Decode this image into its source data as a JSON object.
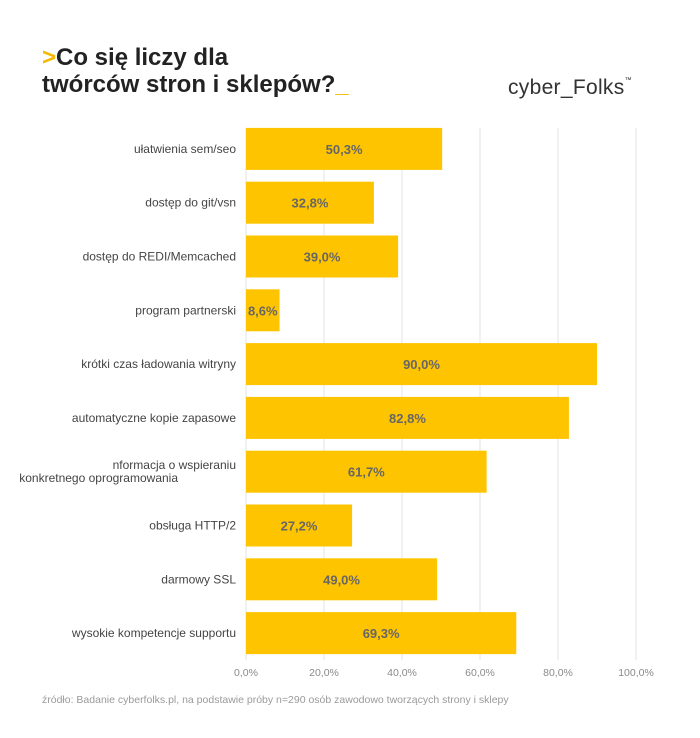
{
  "header": {
    "title_prefix": ">",
    "title_line1": "Co się liczy dla",
    "title_line2": "twórców stron i sklepów?",
    "title_suffix": "_",
    "logo_text": "cyber_Folks",
    "logo_tm": "™"
  },
  "source_note": "źródło: Badanie cyberfolks.pl, na podstawie próby n=290 osób zawodowo tworzących strony i sklepy",
  "colors": {
    "bar": "#FFC400",
    "accent": "#F7B900",
    "bar_label": "#666666",
    "category_label": "#444444",
    "tick_label": "#8a8a8a",
    "grid": "#e3e3e3"
  },
  "chart_data": {
    "type": "bar",
    "orientation": "horizontal",
    "categories": [
      "ułatwienia sem/seo",
      "dostęp do git/vsn",
      "dostęp do REDI/Memcached",
      "program partnerski",
      "krótki czas ładowania witryny",
      "automatyczne kopie zapasowe",
      "nformacja o wspieraniu konkretnego oprogramowania",
      "obsługa HTTP/2",
      "darmowy SSL",
      "wysokie kompetencje supportu"
    ],
    "values": [
      50.3,
      32.8,
      39.0,
      8.6,
      90.0,
      82.8,
      61.7,
      27.2,
      49.0,
      69.3
    ],
    "value_labels": [
      "50,3%",
      "32,8%",
      "39,0%",
      "8,6%",
      "90,0%",
      "82,8%",
      "61,7%",
      "27,2%",
      "49,0%",
      "69,3%"
    ],
    "xlim": [
      0,
      100
    ],
    "xticks": [
      0,
      20,
      40,
      60,
      80,
      100
    ],
    "xtick_labels": [
      "0,0%",
      "20,0%",
      "40,0%",
      "60,0%",
      "80,0%",
      "100,0%"
    ],
    "grid": true,
    "legend": false
  }
}
